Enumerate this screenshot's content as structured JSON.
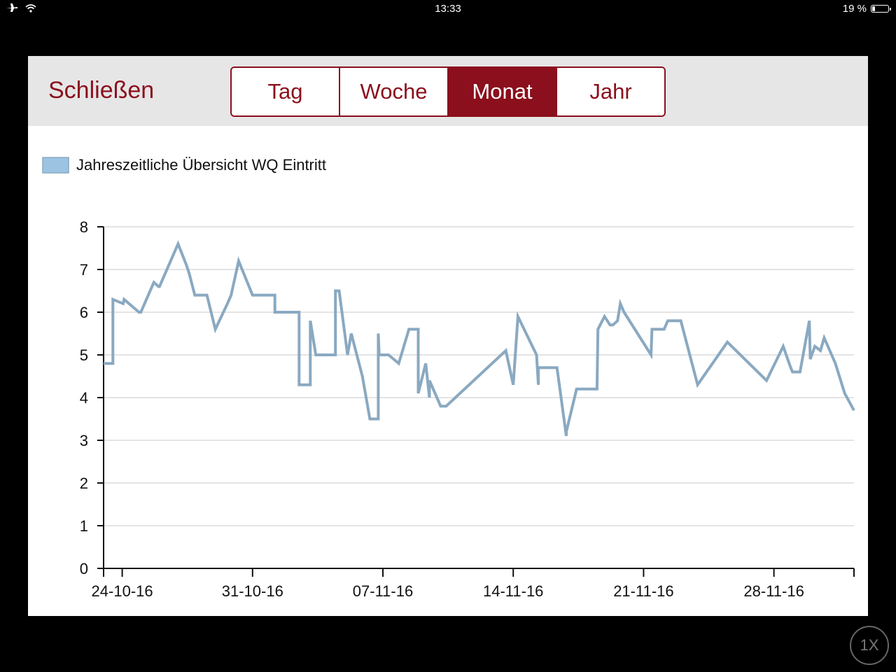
{
  "status_bar": {
    "time": "13:33",
    "battery_text": "19 %",
    "battery_level": 0.19,
    "icons": [
      "airplane-icon",
      "wifi-icon"
    ]
  },
  "toolbar": {
    "close_label": "Schließen",
    "tabs": [
      {
        "label": "Tag",
        "active": false
      },
      {
        "label": "Woche",
        "active": false
      },
      {
        "label": "Monat",
        "active": true
      },
      {
        "label": "Jahr",
        "active": false
      }
    ]
  },
  "zoom_label": "1X",
  "colors": {
    "accent": "#8b0f1c",
    "toolbar_bg": "#e6e6e6",
    "series_line": "#8aa9c1",
    "legend_swatch": "#9dc3e2"
  },
  "chart_data": {
    "type": "line",
    "legend": [
      "Jahreszeitliche Übersicht WQ Eintritt"
    ],
    "x_ticks": [
      "24-10-16",
      "31-10-16",
      "07-11-16",
      "14-11-16",
      "21-11-16",
      "28-11-16"
    ],
    "x_tick_days": [
      0,
      7,
      14,
      21,
      28,
      35
    ],
    "x_range_days": [
      -1,
      37.5
    ],
    "ylim": [
      0,
      8
    ],
    "y_ticks": [
      0,
      1,
      2,
      3,
      4,
      5,
      6,
      7,
      8
    ],
    "grid": "horizontal",
    "series": [
      {
        "name": "Jahreszeitliche Übersicht WQ Eintritt",
        "x": [
          -1,
          -0.5,
          -0.5,
          0.05,
          0.05,
          0.1,
          0.9,
          1.0,
          1.7,
          1.95,
          2.0,
          3.0,
          3.45,
          3.45,
          3.6,
          3.9,
          4.1,
          4.35,
          4.55,
          5.0,
          5.65,
          5.85,
          5.85,
          5.9,
          6.25,
          7.0,
          8.2,
          8.2,
          8.4,
          8.4,
          9.0,
          9.5,
          9.5,
          10.1,
          10.1,
          10.4,
          10.45,
          11.2,
          11.45,
          11.45,
          11.65,
          12.1,
          12.3,
          12.9,
          13.3,
          13.75,
          13.75,
          13.8,
          14.3,
          14.85,
          15.4,
          15.9,
          15.9,
          16.3,
          16.5,
          16.5,
          17.1,
          17.4,
          20.6,
          21.0,
          21.0,
          21.25,
          22.25,
          22.35,
          22.35,
          22.8,
          23.35,
          23.85,
          23.85,
          24.4,
          25.5,
          25.55,
          25.9,
          26.2,
          26.35,
          26.6,
          26.75,
          26.95,
          28.4,
          28.45,
          28.45,
          29.1,
          29.3,
          30.0,
          30.9,
          32.5,
          34.6,
          35.5,
          35.9,
          36.0,
          36.4,
          36.9,
          36.95,
          37.2,
          37.5,
          37.7,
          38.3,
          38.8,
          39.3
        ],
        "y": [
          4.8,
          4.8,
          6.3,
          6.2,
          6.2,
          6.3,
          6.0,
          6.0,
          6.7,
          6.6,
          6.6,
          7.6,
          7.1,
          7.1,
          6.9,
          6.4,
          6.4,
          6.4,
          6.4,
          5.6,
          6.2,
          6.4,
          6.4,
          6.5,
          7.2,
          6.4,
          6.4,
          6.0,
          6.0,
          6.0,
          6.0,
          6.0,
          4.3,
          4.3,
          5.8,
          5.0,
          5.0,
          5.0,
          5.0,
          6.5,
          6.5,
          5.0,
          5.5,
          4.5,
          3.5,
          3.5,
          5.5,
          5.0,
          5.0,
          4.8,
          5.6,
          5.6,
          4.1,
          4.8,
          4.0,
          4.4,
          3.8,
          3.8,
          5.1,
          4.3,
          4.3,
          5.9,
          5.0,
          4.3,
          4.7,
          4.7,
          4.7,
          3.1,
          3.2,
          4.2,
          4.2,
          5.6,
          5.9,
          5.7,
          5.7,
          5.8,
          6.2,
          6.0,
          5.0,
          5.6,
          5.6,
          5.6,
          5.8,
          5.8,
          4.3,
          5.3,
          4.4,
          5.2,
          4.7,
          4.6,
          4.6,
          5.8,
          4.9,
          5.2,
          5.1,
          5.4,
          4.8,
          4.1,
          3.7
        ],
        "x_note": null
      }
    ]
  }
}
